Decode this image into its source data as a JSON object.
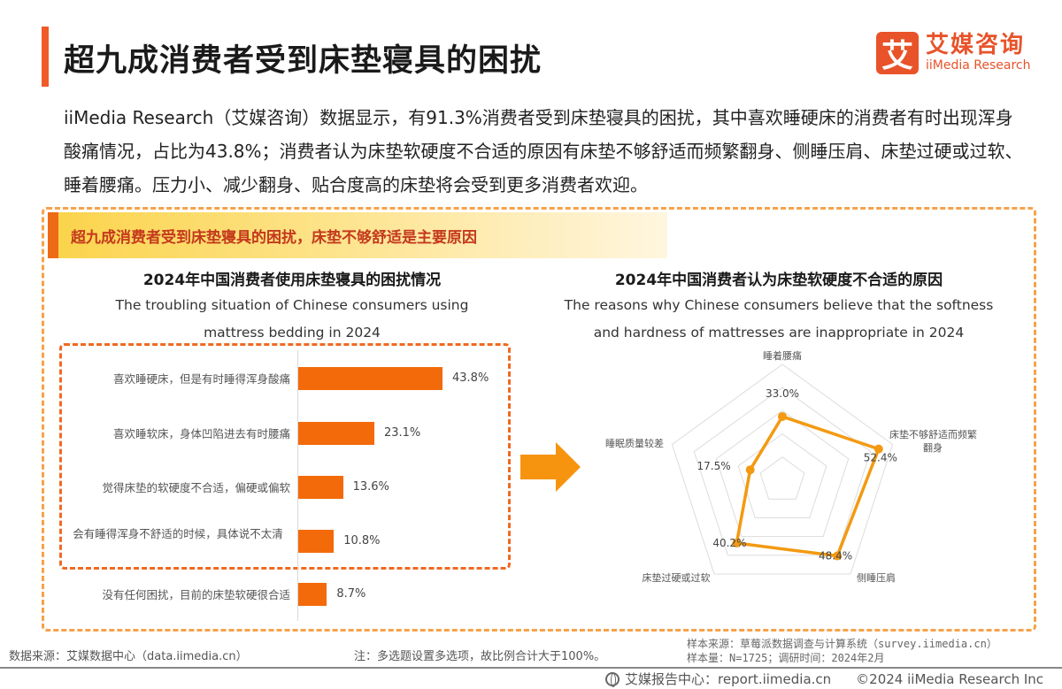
{
  "header": {
    "title": "超九成消费者受到床垫寝具的困扰",
    "logo": {
      "mark": "艾",
      "cn": "艾媒咨询",
      "en": "iiMedia Research"
    }
  },
  "summary": "iiMedia Research（艾媒咨询）数据显示，有91.3%消费者受到床垫寝具的困扰，其中喜欢睡硬床的消费者有时出现浑身酸痛情况，占比为43.8%；消费者认为床垫软硬度不合适的原因有床垫不够舒适而频繁翻身、侧睡压肩、床垫过硬或过软、睡着腰痛。压力小、减少翻身、贴合度高的床垫将会受到更多消费者欢迎。",
  "banner": "超九成消费者受到床垫寝具的困扰，床垫不够舒适是主要原因",
  "colors": {
    "accent": "#f05a28",
    "bar": "#f36a0a",
    "radar": "#f39a12",
    "dashed": "#f6a24a"
  },
  "chart_data": [
    {
      "type": "bar",
      "orientation": "horizontal",
      "title": "2024年中国消费者使用床垫寝具的困扰情况",
      "subtitle_line1": "The troubling situation of Chinese consumers using",
      "subtitle_line2": "mattress bedding in 2024",
      "categories": [
        "喜欢睡硬床，但是有时睡得浑身酸痛",
        "喜欢睡软床，身体凹陷进去有时腰痛",
        "觉得床垫的软硬度不合适，偏硬或偏软",
        "会有睡得浑身不舒适的时候，具体说不太清",
        "没有任何困扰，目前的床垫软硬很合适"
      ],
      "values": [
        43.8,
        23.1,
        13.6,
        10.8,
        8.7
      ],
      "value_labels": [
        "43.8%",
        "23.1%",
        "13.6%",
        "10.8%",
        "8.7%"
      ],
      "unit": "%",
      "grid": false
    },
    {
      "type": "radar",
      "title": "2024年中国消费者认为床垫软硬度不合适的原因",
      "subtitle_line1": "The reasons why Chinese consumers believe that the softness",
      "subtitle_line2": "and hardness of mattresses are inappropriate in 2024",
      "categories": [
        "睡着腰痛",
        "床垫不够舒适而频繁翻身",
        "侧睡压肩",
        "床垫过硬或过软",
        "睡眠质量较差"
      ],
      "values": [
        33.0,
        52.4,
        48.4,
        40.2,
        17.5
      ],
      "value_labels": [
        "33.0%",
        "52.4%",
        "48.4%",
        "40.2%",
        "17.5%"
      ],
      "range": [
        0,
        60
      ],
      "rings": 5
    }
  ],
  "footer": {
    "source": "数据来源：艾媒数据中心（data.iimedia.cn）",
    "note": "注：多选题设置多选项，故比例合计大于100%。",
    "sample_source": "样本来源：草莓派数据调查与计算系统（survey.iimedia.cn）",
    "sample_size": "样本量：N=1725；调研时间：2024年2月",
    "report_center": "艾媒报告中心：report.iimedia.cn",
    "copyright": "©2024  iiMedia Research  Inc"
  }
}
